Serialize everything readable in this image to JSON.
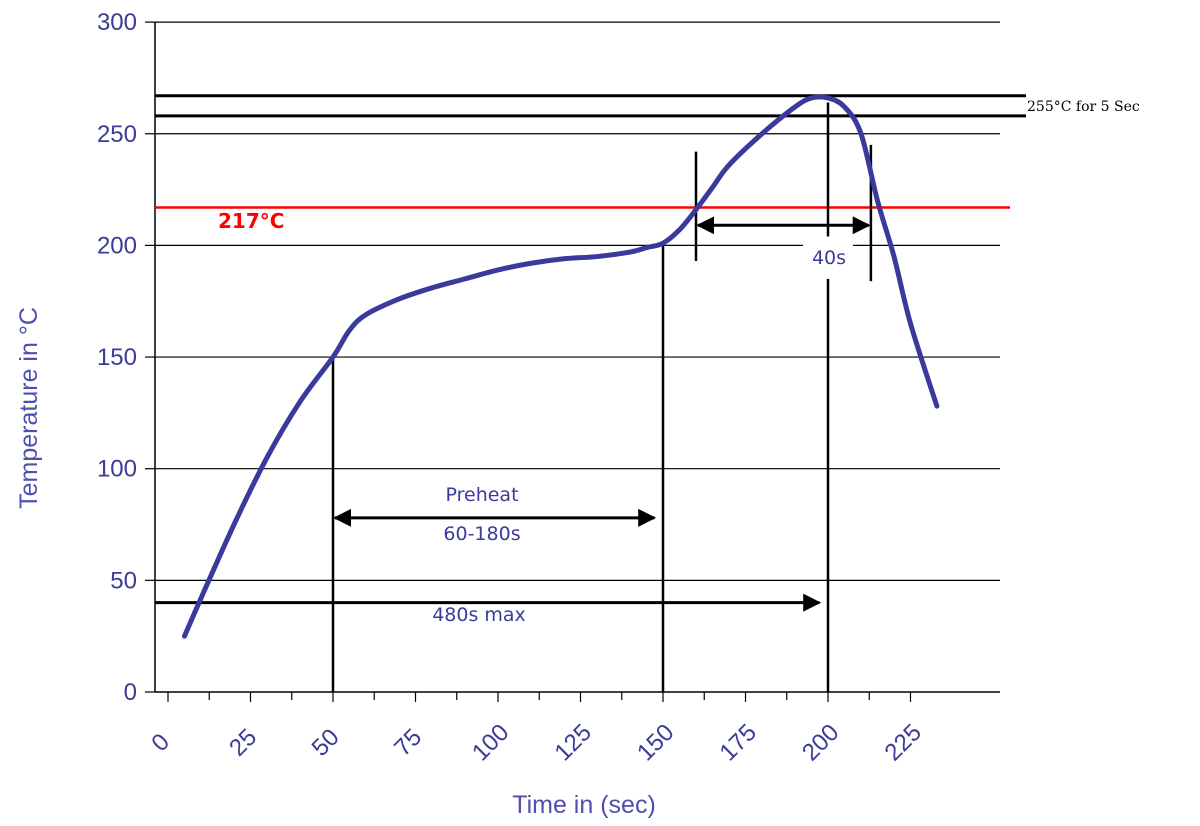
{
  "chart_data": {
    "type": "line",
    "xlabel": "Time in (sec)",
    "ylabel": "Temperature in °C",
    "xlim": [
      0,
      230
    ],
    "ylim": [
      0,
      300
    ],
    "x_ticks": [
      0,
      25,
      50,
      75,
      100,
      125,
      150,
      175,
      200,
      225
    ],
    "y_ticks": [
      0,
      50,
      100,
      150,
      200,
      250,
      300
    ],
    "grid": "horizontal",
    "series": [
      {
        "color": "#3a3a9c",
        "points": [
          [
            5,
            25
          ],
          [
            10,
            42
          ],
          [
            20,
            75
          ],
          [
            30,
            105
          ],
          [
            40,
            130
          ],
          [
            50,
            150
          ],
          [
            55,
            162
          ],
          [
            60,
            169
          ],
          [
            70,
            176
          ],
          [
            80,
            181
          ],
          [
            90,
            185
          ],
          [
            100,
            189
          ],
          [
            110,
            192
          ],
          [
            120,
            194
          ],
          [
            130,
            195
          ],
          [
            140,
            197
          ],
          [
            145,
            199
          ],
          [
            150,
            201
          ],
          [
            155,
            207
          ],
          [
            160,
            216
          ],
          [
            165,
            226
          ],
          [
            170,
            236
          ],
          [
            180,
            250
          ],
          [
            190,
            262
          ],
          [
            195,
            266
          ],
          [
            200,
            266
          ],
          [
            205,
            262
          ],
          [
            210,
            250
          ],
          [
            215,
            220
          ],
          [
            220,
            195
          ],
          [
            225,
            165
          ],
          [
            233,
            128
          ]
        ]
      }
    ],
    "reference_lines": [
      {
        "y": 267,
        "color": "#000000"
      },
      {
        "y": 258,
        "color": "#000000"
      },
      {
        "y": 217,
        "color": "#ff0000",
        "label": "217°C"
      }
    ],
    "vertical_markers": [
      50,
      150,
      200,
      160,
      213
    ],
    "annotations": {
      "peak_label": "255°C for 5 Sec",
      "reflow_label": "217°C",
      "time_above_liquidus": "40s",
      "preheat_title": "Preheat",
      "preheat_range": "60-180s",
      "total_time": "480s max"
    },
    "spans": [
      {
        "from": 160,
        "to": 213,
        "y": 209
      },
      {
        "from": 50,
        "to": 148,
        "y": 78
      },
      {
        "from": 0,
        "to": 198,
        "y": 40
      }
    ]
  }
}
